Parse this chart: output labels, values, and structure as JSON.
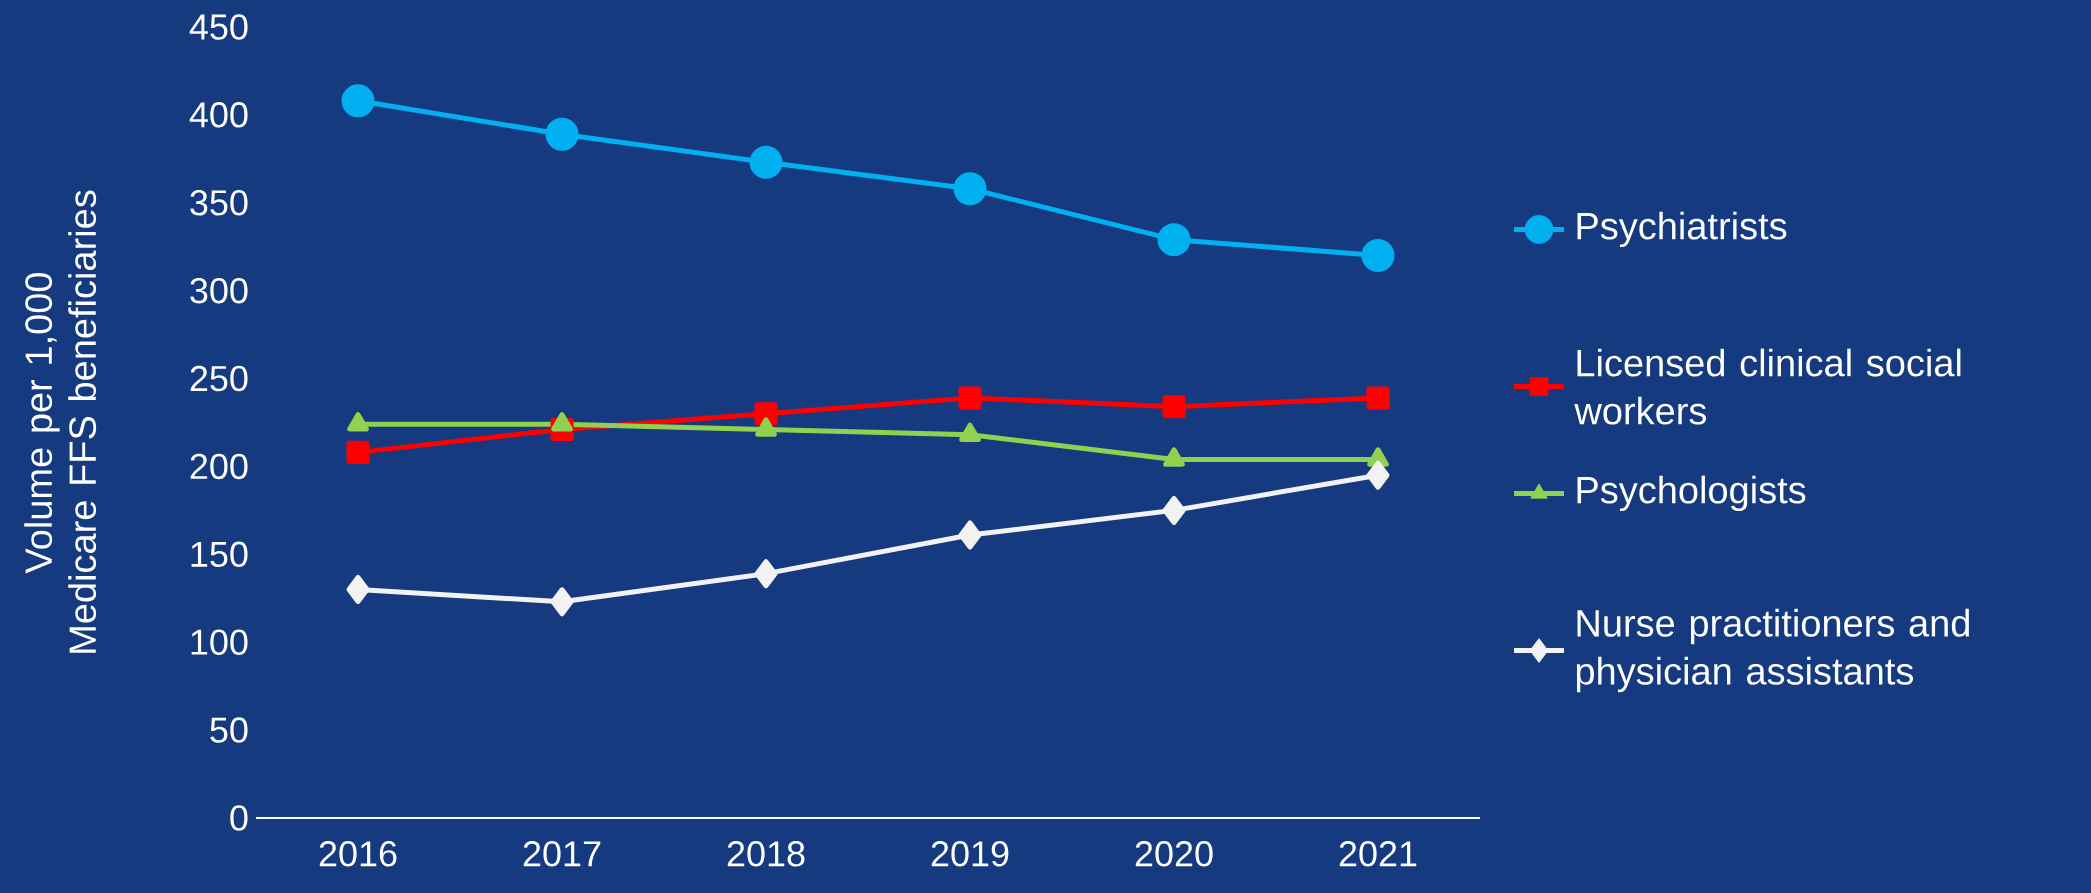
{
  "chart_data": {
    "type": "line",
    "ylabel": "Volume  per 1,000 Medicare FFS beneficiaries",
    "categories": [
      "2016",
      "2017",
      "2018",
      "2019",
      "2020",
      "2021"
    ],
    "series": [
      {
        "name": "Psychiatrists",
        "color": "#00b0f0",
        "marker": "circle",
        "values": [
          408,
          389,
          373,
          358,
          329,
          320
        ]
      },
      {
        "name": "Licensed clinical social workers",
        "color": "#ff0000",
        "marker": "square",
        "values": [
          208,
          221,
          230,
          239,
          234,
          239
        ]
      },
      {
        "name": "Psychologists",
        "color": "#92d050",
        "marker": "triangle",
        "values": [
          224,
          224,
          221,
          218,
          204,
          204
        ]
      },
      {
        "name": "Nurse practitioners and physician assistants",
        "color": "#f2f2f2",
        "marker": "diamond",
        "values": [
          130,
          123,
          139,
          161,
          175,
          195
        ]
      }
    ],
    "ylim": [
      0,
      450
    ],
    "yticks": [
      0,
      50,
      100,
      150,
      200,
      250,
      300,
      350,
      400,
      450
    ],
    "grid": false,
    "legend": "right",
    "line_style": "solid"
  }
}
